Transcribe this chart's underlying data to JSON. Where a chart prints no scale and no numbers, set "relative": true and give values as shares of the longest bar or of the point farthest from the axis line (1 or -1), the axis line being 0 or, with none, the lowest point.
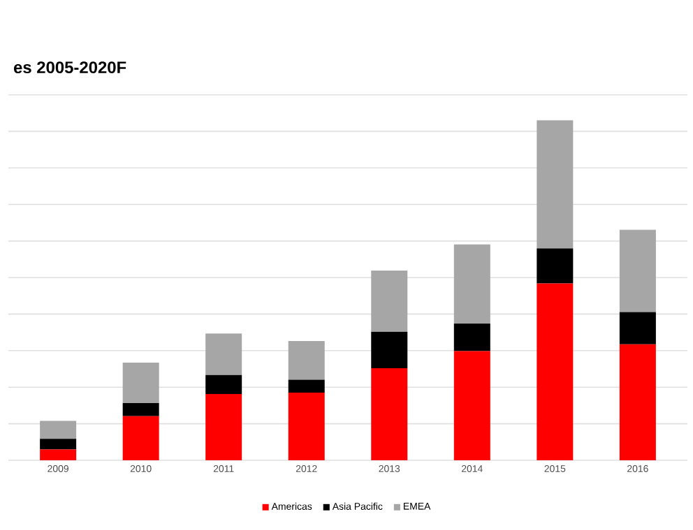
{
  "chart_data": {
    "type": "bar",
    "title": "es 2005-2020F",
    "stacked": true,
    "relative": true,
    "grid": true,
    "legend": "bottom",
    "categories": [
      "2009",
      "2010",
      "2011",
      "2012",
      "2013",
      "2014",
      "2015",
      "2016"
    ],
    "series": [
      {
        "name": "Americas",
        "color": "#ff0000",
        "values": [
          0.032,
          0.13,
          0.195,
          0.199,
          0.271,
          0.321,
          0.52,
          0.341
        ]
      },
      {
        "name": "Asia Pacific",
        "color": "#000000",
        "values": [
          0.031,
          0.038,
          0.056,
          0.038,
          0.107,
          0.081,
          0.103,
          0.095
        ]
      },
      {
        "name": "EMEA",
        "color": "#a6a6a6",
        "values": [
          0.053,
          0.119,
          0.122,
          0.114,
          0.18,
          0.233,
          0.377,
          0.242
        ]
      }
    ]
  }
}
